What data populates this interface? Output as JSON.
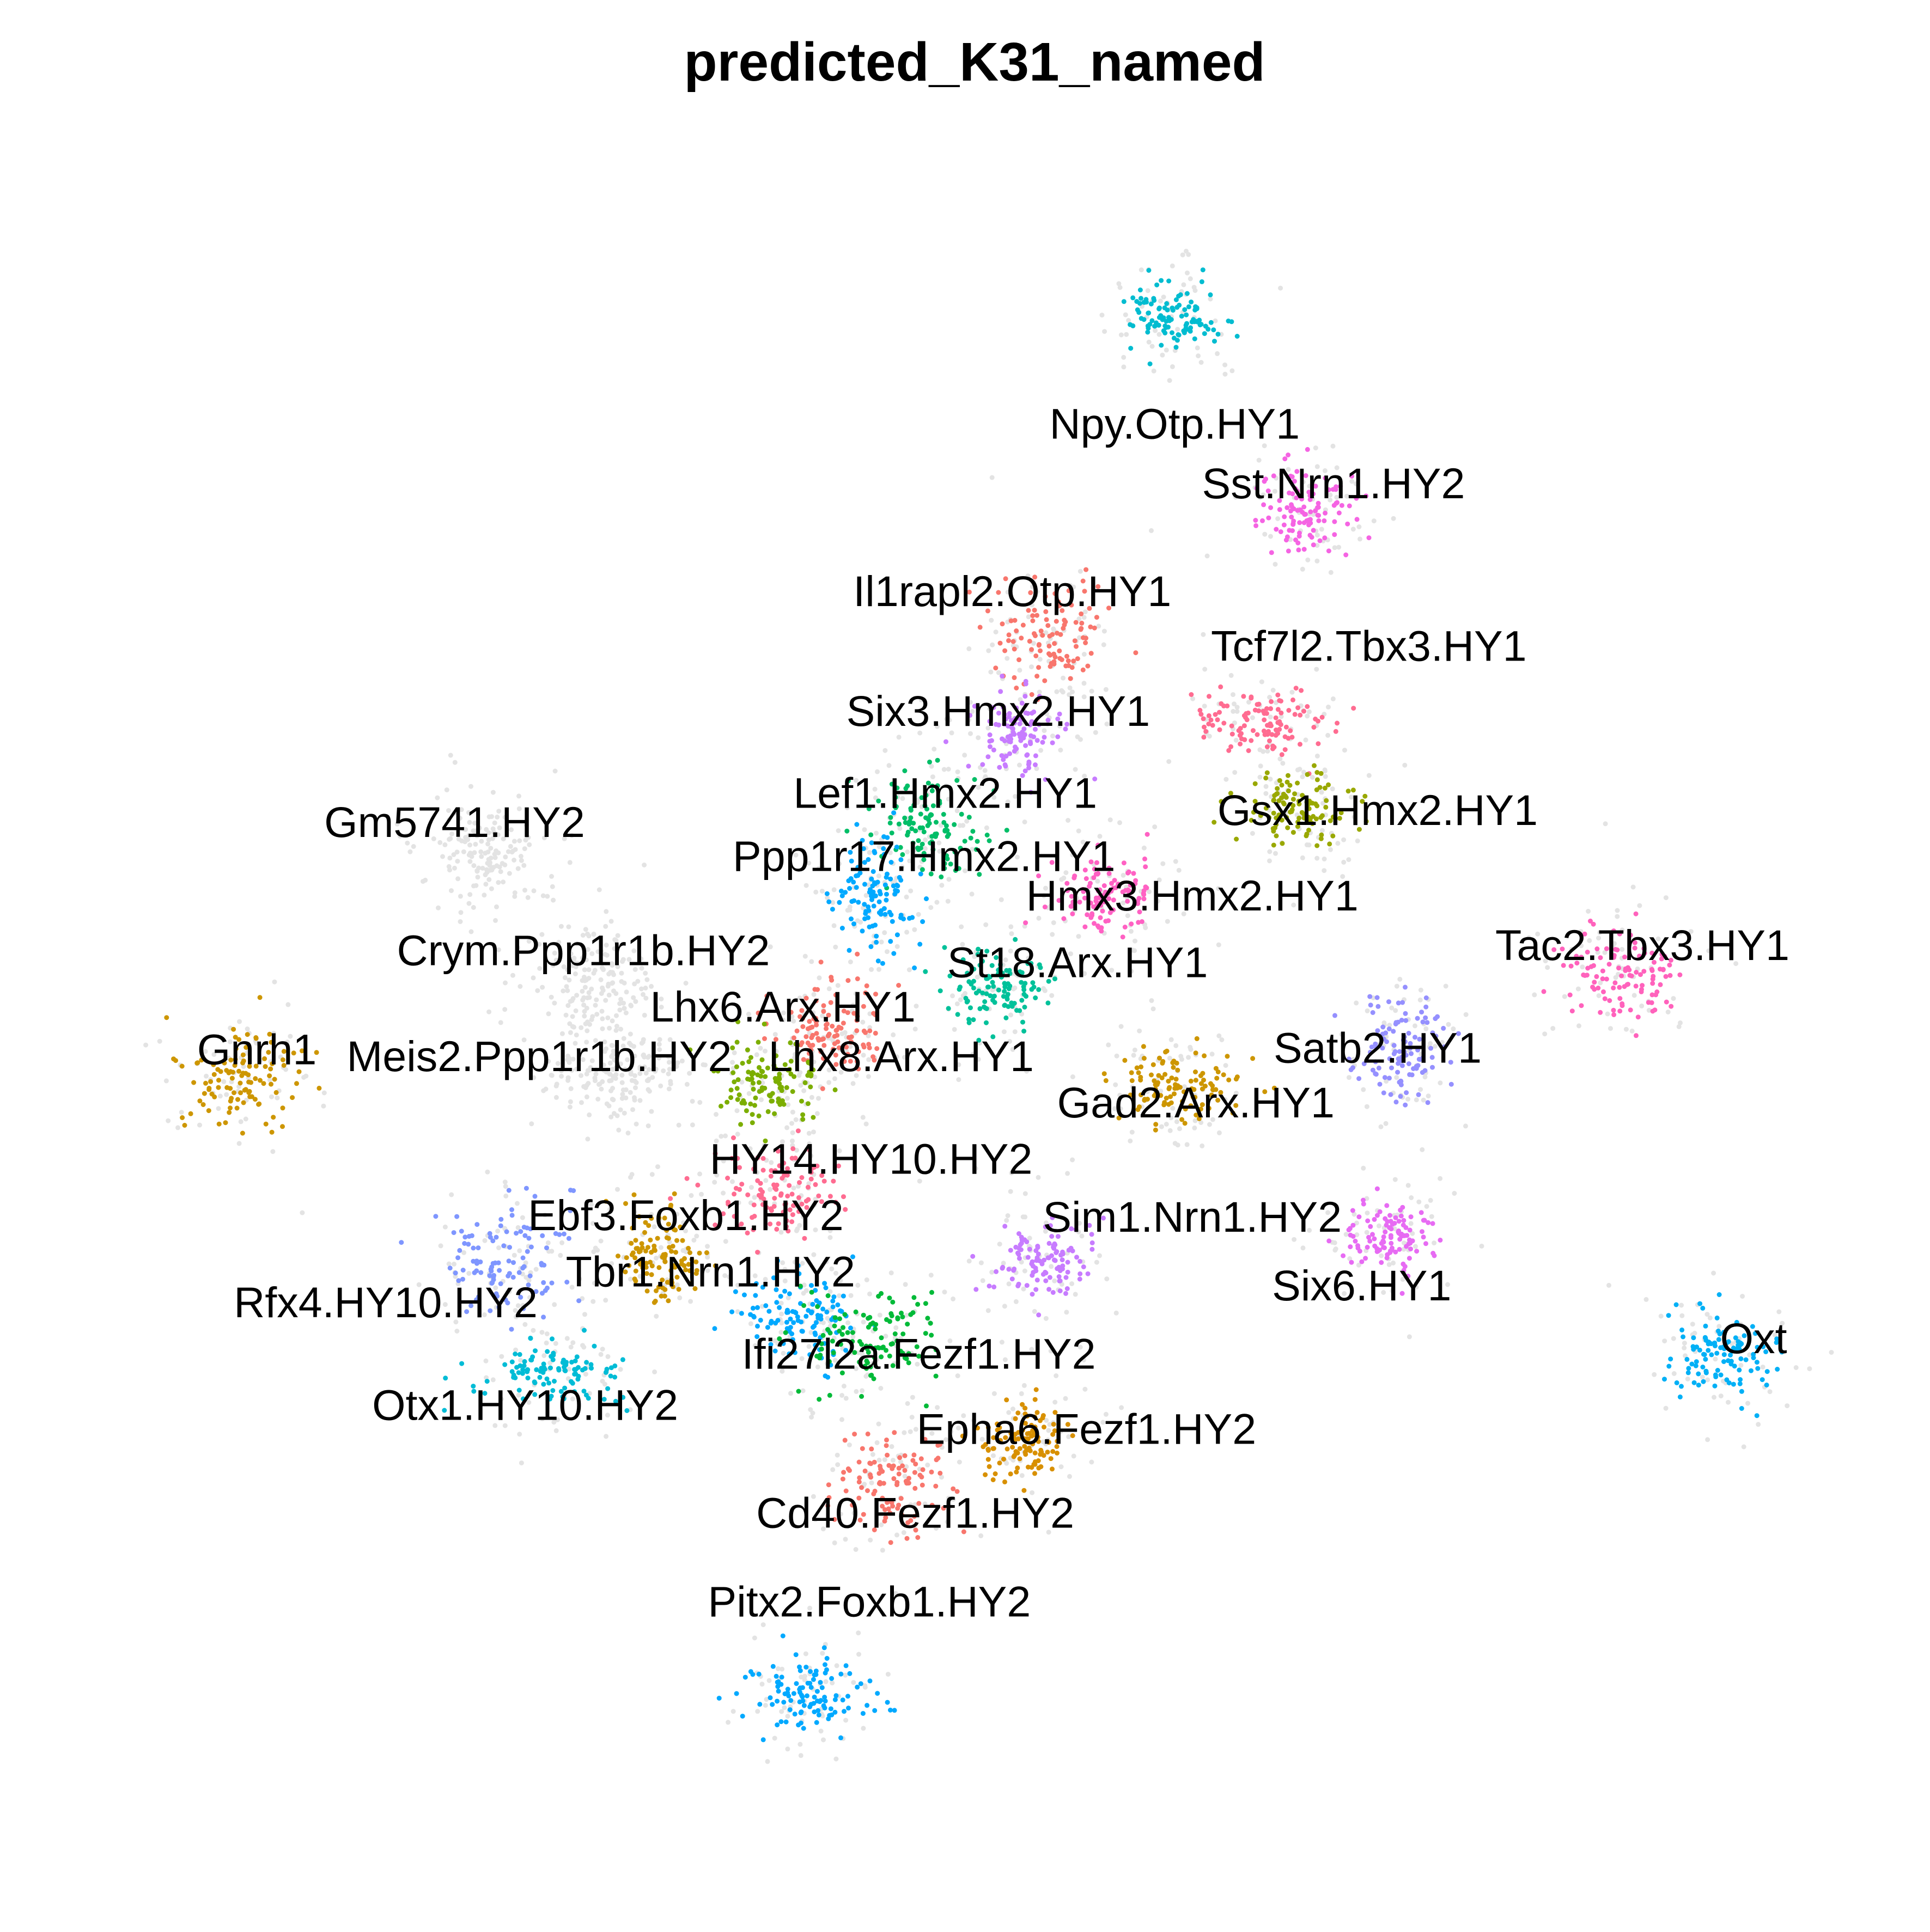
{
  "chart_data": {
    "type": "scatter",
    "title": "predicted_K31_named",
    "xlabel": "",
    "ylabel": "",
    "legend": "none",
    "grid": false,
    "axes_visible": false,
    "xlim": [
      0,
      100
    ],
    "ylim": [
      0,
      100
    ],
    "background_cells_color": "#E3E3E3",
    "clusters": [
      {
        "label": "Npy.Otp.HY1",
        "x": 61.0,
        "y": 89.8,
        "color": "#00BCD0",
        "label_x": 61.0,
        "label_y": 83.3
      },
      {
        "label": "Sst.Nrn1.HY2",
        "x": 68.4,
        "y": 78.3,
        "color": "#F564E3",
        "label_x": 70.0,
        "label_y": 79.8
      },
      {
        "label": "Il1rapl2.Otp.HY1",
        "x": 54.0,
        "y": 71.0,
        "color": "#F8766D",
        "label_x": 51.8,
        "label_y": 73.5
      },
      {
        "label": "Tcf7l2.Tbx3.HY1",
        "x": 66.0,
        "y": 66.0,
        "color": "#FF6C91",
        "label_x": 72.0,
        "label_y": 70.3
      },
      {
        "label": "Six3.Hmx2.HY1",
        "x": 52.0,
        "y": 65.5,
        "color": "#C77CFF",
        "label_x": 51.0,
        "label_y": 66.5
      },
      {
        "label": "Lef1.Hmx2.HY1",
        "x": 47.0,
        "y": 60.0,
        "color": "#00BE67",
        "label_x": 48.0,
        "label_y": 61.7
      },
      {
        "label": "Gsx1.Hmx2.HY1",
        "x": 68.0,
        "y": 61.0,
        "color": "#99A800",
        "label_x": 72.5,
        "label_y": 60.7
      },
      {
        "label": "Gm5741.HY2",
        "x": 22.0,
        "y": 58.5,
        "color": "#E3E3E3",
        "label_x": 20.2,
        "label_y": 60.0
      },
      {
        "label": "Ppp1r17.Hmx2.HY1",
        "x": 44.0,
        "y": 56.0,
        "color": "#00A9FF",
        "label_x": 46.8,
        "label_y": 58.0
      },
      {
        "label": "Hmx3.Hmx2.HY1",
        "x": 57.0,
        "y": 56.0,
        "color": "#FF61C3",
        "label_x": 62.0,
        "label_y": 55.7
      },
      {
        "label": "Tac2.Tbx3.HY1",
        "x": 86.5,
        "y": 51.5,
        "color": "#FF62BC",
        "label_x": 87.5,
        "label_y": 52.8
      },
      {
        "label": "Crym.Ppp1r1b.HY2",
        "x": 28.0,
        "y": 51.0,
        "color": "#E3E3E3",
        "label_x": 27.5,
        "label_y": 52.5
      },
      {
        "label": "St18.Arx.HY1",
        "x": 51.0,
        "y": 50.5,
        "color": "#00C19A",
        "label_x": 55.5,
        "label_y": 51.8
      },
      {
        "label": "Lhx6.Arx.HY1",
        "x": 41.5,
        "y": 48.0,
        "color": "#F8766D",
        "label_x": 38.8,
        "label_y": 49.2
      },
      {
        "label": "Gnrh1",
        "x": 8.0,
        "y": 45.0,
        "color": "#CD9600",
        "label_x": 9.0,
        "label_y": 46.7
      },
      {
        "label": "Meis2.Ppp1r1b.HY2",
        "x": 29.5,
        "y": 45.5,
        "color": "#E3E3E3",
        "label_x": 25.0,
        "label_y": 46.3
      },
      {
        "label": "Lhx8.Arx.HY1",
        "x": 38.0,
        "y": 45.0,
        "color": "#7CAE00",
        "label_x": 45.5,
        "label_y": 46.3
      },
      {
        "label": "Satb2.HY1",
        "x": 74.0,
        "y": 47.0,
        "color": "#9590FF",
        "label_x": 72.5,
        "label_y": 46.8
      },
      {
        "label": "Gad2.Arx.HY1",
        "x": 61.0,
        "y": 45.0,
        "color": "#CD9600",
        "label_x": 62.2,
        "label_y": 43.6
      },
      {
        "label": "HY14.HY10.HY2",
        "x": 38.5,
        "y": 38.5,
        "color": "#FF6C91",
        "label_x": 43.8,
        "label_y": 40.3
      },
      {
        "label": "Ebf3.Foxb1.HY2",
        "x": 32.0,
        "y": 35.0,
        "color": "#CD9600",
        "label_x": 33.3,
        "label_y": 37.0
      },
      {
        "label": "Sim1.Nrn1.HY2",
        "x": 53.5,
        "y": 34.5,
        "color": "#C77CFF",
        "label_x": 62.0,
        "label_y": 36.9
      },
      {
        "label": "Tbr1.Nrn1.HY2",
        "x": 40.0,
        "y": 31.0,
        "color": "#00A9FF",
        "label_x": 34.7,
        "label_y": 33.7
      },
      {
        "label": "Rfx4.HY10.HY2",
        "x": 23.0,
        "y": 34.5,
        "color": "#7F96FF",
        "label_x": 16.3,
        "label_y": 31.9
      },
      {
        "label": "Six6.HY1",
        "x": 73.0,
        "y": 36.0,
        "color": "#E76BF3",
        "label_x": 71.6,
        "label_y": 32.9
      },
      {
        "label": "Oxt",
        "x": 92.0,
        "y": 29.0,
        "color": "#00B0F6",
        "label_x": 93.8,
        "label_y": 29.8
      },
      {
        "label": "Ifi27l2a.Fezf1.HY2",
        "x": 44.0,
        "y": 30.0,
        "color": "#00BA38",
        "label_x": 46.5,
        "label_y": 28.9
      },
      {
        "label": "Otx1.HY10.HY2",
        "x": 26.0,
        "y": 28.0,
        "color": "#00BCD6",
        "label_x": 24.2,
        "label_y": 25.9
      },
      {
        "label": "Epha6.Fezf1.HY2",
        "x": 52.5,
        "y": 24.0,
        "color": "#D89000",
        "label_x": 56.0,
        "label_y": 24.5
      },
      {
        "label": "Cd40.Fezf1.HY2",
        "x": 45.0,
        "y": 21.5,
        "color": "#F8766D",
        "label_x": 46.3,
        "label_y": 19.6
      },
      {
        "label": "Pitx2.Foxb1.HY2",
        "x": 40.0,
        "y": 9.0,
        "color": "#00A9FF",
        "label_x": 43.7,
        "label_y": 14.4
      }
    ]
  }
}
